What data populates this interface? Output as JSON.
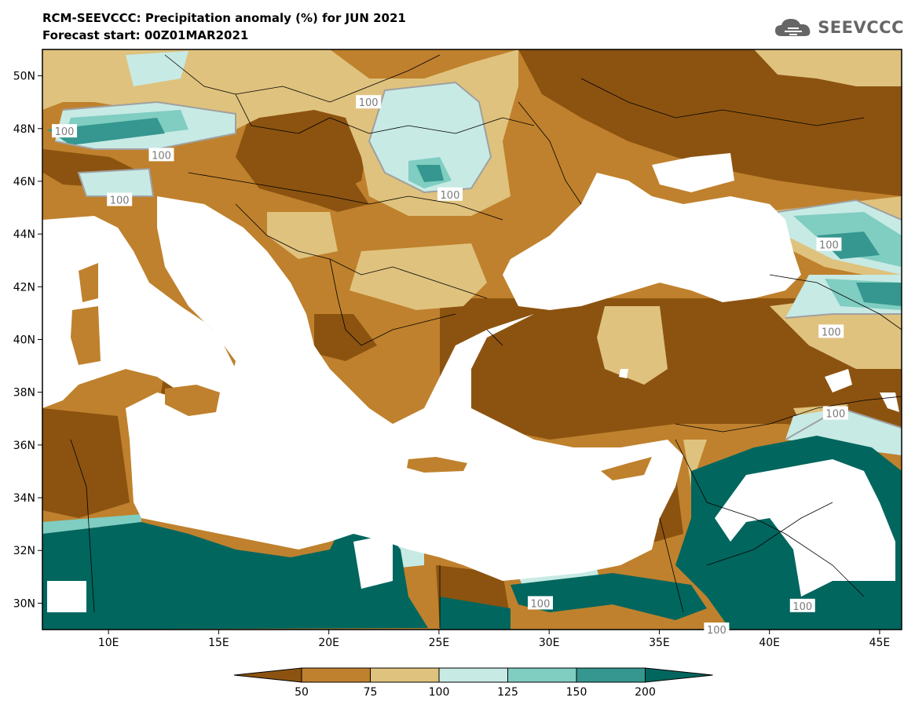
{
  "header": {
    "title": "RCM-SEEVCCC: Precipitation anomaly (%) for JUN 2021",
    "subtitle": "Forecast start: 00Z01MAR2021"
  },
  "logo": {
    "text": "SEEVCCC",
    "icon": "cloud-icon"
  },
  "axes": {
    "lon_min": 7,
    "lon_max": 46,
    "lat_min": 29,
    "lat_max": 51,
    "lat_ticks": [
      {
        "value": 50,
        "label": "50N"
      },
      {
        "value": 48,
        "label": "48N"
      },
      {
        "value": 46,
        "label": "46N"
      },
      {
        "value": 44,
        "label": "44N"
      },
      {
        "value": 42,
        "label": "42N"
      },
      {
        "value": 40,
        "label": "40N"
      },
      {
        "value": 38,
        "label": "38N"
      },
      {
        "value": 36,
        "label": "36N"
      },
      {
        "value": 34,
        "label": "34N"
      },
      {
        "value": 32,
        "label": "32N"
      },
      {
        "value": 30,
        "label": "30N"
      }
    ],
    "lon_ticks": [
      {
        "value": 10,
        "label": "10E"
      },
      {
        "value": 15,
        "label": "15E"
      },
      {
        "value": 20,
        "label": "20E"
      },
      {
        "value": 25,
        "label": "25E"
      },
      {
        "value": 30,
        "label": "30E"
      },
      {
        "value": 35,
        "label": "35E"
      },
      {
        "value": 40,
        "label": "40E"
      },
      {
        "value": 45,
        "label": "45E"
      }
    ]
  },
  "contour_labels": [
    {
      "text": "100",
      "lon": 8.0,
      "lat": 47.9
    },
    {
      "text": "100",
      "lon": 12.4,
      "lat": 47.0
    },
    {
      "text": "100",
      "lon": 10.5,
      "lat": 45.3
    },
    {
      "text": "100",
      "lon": 21.8,
      "lat": 49.0
    },
    {
      "text": "100",
      "lon": 25.5,
      "lat": 45.5
    },
    {
      "text": "100",
      "lon": 42.7,
      "lat": 43.6
    },
    {
      "text": "100",
      "lon": 42.8,
      "lat": 40.3
    },
    {
      "text": "100",
      "lon": 43.0,
      "lat": 37.2
    },
    {
      "text": "100",
      "lon": 29.6,
      "lat": 30.0
    },
    {
      "text": "100",
      "lon": 41.5,
      "lat": 29.9
    },
    {
      "text": "100",
      "lon": 37.6,
      "lat": 29.0
    }
  ],
  "colorbar": {
    "levels": [
      "50",
      "75",
      "100",
      "125",
      "150",
      "200"
    ],
    "colors": [
      "#8c5310",
      "#bf812d",
      "#dfc27d",
      "#c7eae5",
      "#80cdc1",
      "#35978f",
      "#01665e"
    ]
  },
  "colors": {
    "land_default": "#bf812d",
    "dry": "#8c5310",
    "moderate": "#dfc27d",
    "wet_light": "#c7eae5",
    "wet_medium": "#80cdc1",
    "wet_strong": "#35978f",
    "wet_extreme": "#01665e",
    "sea": "#ffffff",
    "contour_line": "#a0a0a0"
  }
}
